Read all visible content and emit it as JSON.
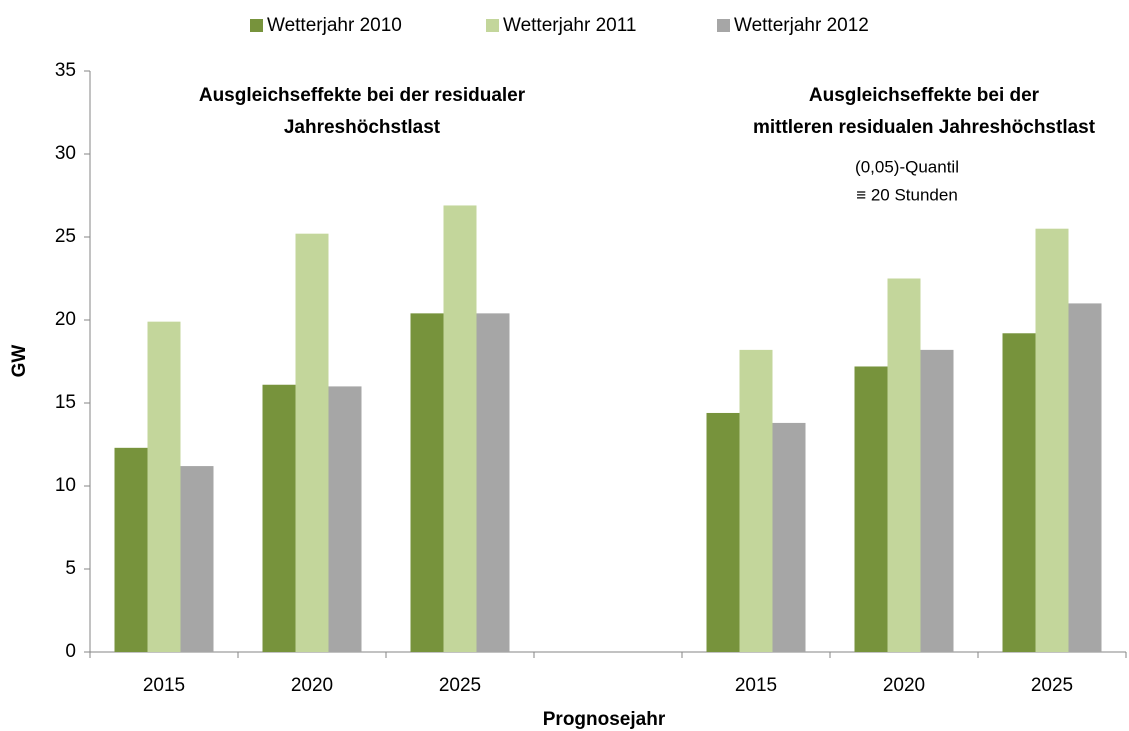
{
  "chart_data": {
    "type": "bar",
    "categories": [
      "2015",
      "2020",
      "2025",
      null,
      "2015",
      "2020",
      "2025"
    ],
    "series": [
      {
        "name": "Wetterjahr 2010",
        "color": "#77933c",
        "values": [
          12.3,
          16.1,
          20.4,
          null,
          14.4,
          17.2,
          19.2
        ]
      },
      {
        "name": "Wetterjahr 2011",
        "color": "#c3d69b",
        "values": [
          19.9,
          25.2,
          26.9,
          null,
          18.2,
          22.5,
          25.5
        ]
      },
      {
        "name": "Wetterjahr 2012",
        "color": "#a6a6a6",
        "values": [
          11.2,
          16.0,
          20.4,
          null,
          13.8,
          18.2,
          21.0
        ]
      }
    ],
    "ylim": [
      0,
      35
    ],
    "yticks": [
      0,
      5,
      10,
      15,
      20,
      25,
      30,
      35
    ],
    "ylabel": "GW",
    "xlabel": "Prognosejahr",
    "annotations": [
      {
        "lines": [
          "Ausgleichseffekte bei der residualer",
          "Jahreshöchstlast"
        ]
      },
      {
        "lines": [
          "Ausgleichseffekte bei der",
          "mittleren residualen Jahreshöchstlast"
        ]
      },
      {
        "lines": [
          "(0,05)-Quantil",
          "≡ 20 Stunden"
        ]
      }
    ],
    "legend": "top"
  }
}
